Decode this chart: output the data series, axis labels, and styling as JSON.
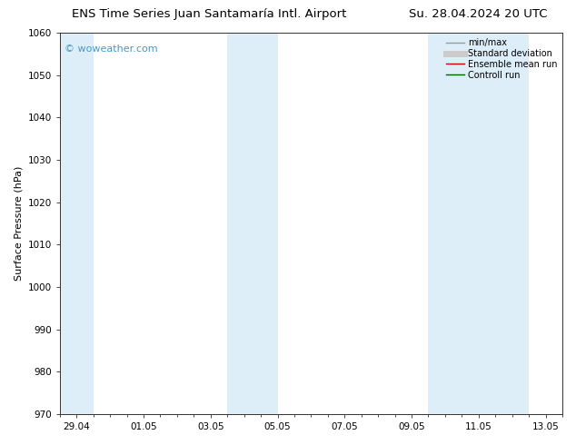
{
  "title_left": "ENS Time Series Juan Santamaría Intl. Airport",
  "title_right": "Su. 28.04.2024 20 UTC",
  "ylabel": "Surface Pressure (hPa)",
  "ylim": [
    970,
    1060
  ],
  "yticks": [
    970,
    980,
    990,
    1000,
    1010,
    1020,
    1030,
    1040,
    1050,
    1060
  ],
  "xlim_start": -0.5,
  "xlim_end": 14.5,
  "xtick_labels": [
    "29.04",
    "01.05",
    "03.05",
    "05.05",
    "07.05",
    "09.05",
    "11.05",
    "13.05"
  ],
  "xtick_positions": [
    0,
    2,
    4,
    6,
    8,
    10,
    12,
    14
  ],
  "shaded_bands": [
    {
      "xmin": -0.5,
      "xmax": 0.5,
      "color": "#ddeef8"
    },
    {
      "xmin": 4.5,
      "xmax": 6.0,
      "color": "#ddeef8"
    },
    {
      "xmin": 10.5,
      "xmax": 13.5,
      "color": "#ddeef8"
    }
  ],
  "watermark_text": "© woweather.com",
  "watermark_color": "#4499cc",
  "legend_items": [
    {
      "label": "min/max",
      "color": "#999999",
      "lw": 1.0
    },
    {
      "label": "Standard deviation",
      "color": "#cccccc",
      "lw": 5
    },
    {
      "label": "Ensemble mean run",
      "color": "#cc0000",
      "lw": 1.0
    },
    {
      "label": "Controll run",
      "color": "#006600",
      "lw": 1.0
    }
  ],
  "bg_color": "#ffffff",
  "plot_bg_color": "#ffffff",
  "title_fontsize": 9.5,
  "ylabel_fontsize": 8,
  "tick_fontsize": 7.5,
  "watermark_fontsize": 8,
  "legend_fontsize": 7
}
